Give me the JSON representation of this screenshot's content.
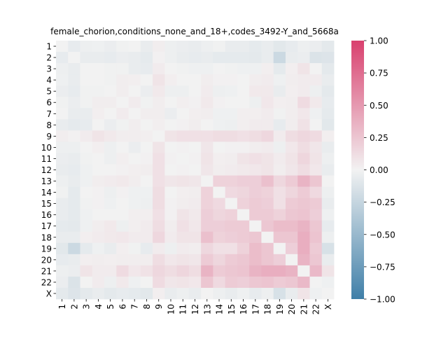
{
  "chart_data": {
    "type": "heatmap",
    "title": "female_chorion,conditions_none_and_18+,codes_3492-Y_and_5668a",
    "xlabel": "",
    "ylabel": "",
    "row_labels": [
      "1",
      "2",
      "3",
      "4",
      "5",
      "6",
      "7",
      "8",
      "9",
      "10",
      "11",
      "12",
      "13",
      "14",
      "15",
      "16",
      "17",
      "18",
      "19",
      "20",
      "21",
      "22",
      "X"
    ],
    "col_labels": [
      "1",
      "2",
      "3",
      "4",
      "5",
      "6",
      "7",
      "8",
      "9",
      "10",
      "11",
      "12",
      "13",
      "14",
      "15",
      "16",
      "17",
      "18",
      "19",
      "20",
      "21",
      "22",
      "X"
    ],
    "values": [
      [
        0.0,
        -0.06,
        -0.03,
        -0.02,
        -0.04,
        -0.01,
        0.0,
        -0.05,
        0.03,
        -0.03,
        -0.04,
        -0.05,
        -0.03,
        -0.01,
        -0.05,
        -0.05,
        -0.07,
        -0.05,
        -0.09,
        -0.06,
        -0.03,
        -0.04,
        -0.08
      ],
      [
        -0.06,
        0.0,
        -0.05,
        -0.05,
        -0.06,
        -0.04,
        -0.05,
        -0.07,
        0.01,
        -0.03,
        -0.05,
        -0.06,
        -0.05,
        -0.07,
        -0.07,
        -0.07,
        -0.08,
        -0.05,
        -0.22,
        -0.05,
        -0.04,
        -0.13,
        -0.12
      ],
      [
        -0.03,
        -0.05,
        0.0,
        0.0,
        -0.01,
        -0.01,
        -0.05,
        -0.06,
        0.04,
        0.0,
        -0.01,
        -0.02,
        -0.02,
        0.0,
        -0.01,
        -0.02,
        -0.02,
        0.02,
        -0.07,
        0.02,
        0.08,
        0.0,
        -0.08
      ],
      [
        -0.02,
        -0.05,
        0.0,
        0.0,
        -0.01,
        0.03,
        0.02,
        0.0,
        0.08,
        0.02,
        0.0,
        0.0,
        0.03,
        0.01,
        0.01,
        0.0,
        0.03,
        0.04,
        -0.02,
        0.03,
        0.04,
        0.04,
        -0.05
      ],
      [
        -0.04,
        -0.06,
        -0.01,
        -0.01,
        0.0,
        0.03,
        0.0,
        -0.04,
        0.05,
        -0.03,
        -0.03,
        0.0,
        0.04,
        -0.03,
        -0.02,
        0.0,
        0.05,
        0.05,
        -0.05,
        0.02,
        0.04,
        -0.03,
        -0.08
      ],
      [
        -0.01,
        -0.04,
        -0.01,
        0.03,
        0.03,
        0.0,
        0.04,
        -0.01,
        0.03,
        0.0,
        0.02,
        0.01,
        0.05,
        0.01,
        0.0,
        0.0,
        -0.03,
        0.06,
        0.02,
        0.03,
        0.13,
        0.05,
        -0.06
      ],
      [
        0.0,
        -0.05,
        -0.05,
        0.02,
        0.0,
        0.04,
        0.0,
        0.03,
        0.03,
        -0.04,
        0.0,
        0.02,
        0.03,
        -0.02,
        -0.02,
        0.02,
        0.02,
        0.04,
        -0.01,
        0.03,
        0.06,
        -0.02,
        -0.07
      ],
      [
        -0.05,
        -0.07,
        -0.06,
        0.0,
        -0.04,
        -0.01,
        0.03,
        0.0,
        0.02,
        0.0,
        0.01,
        0.03,
        0.0,
        -0.02,
        -0.03,
        0.02,
        0.04,
        0.04,
        -0.06,
        0.03,
        0.09,
        0.0,
        -0.09
      ],
      [
        0.03,
        0.01,
        0.04,
        0.08,
        0.05,
        0.03,
        0.03,
        0.02,
        0.0,
        0.08,
        0.1,
        0.1,
        0.1,
        0.12,
        0.12,
        0.1,
        0.12,
        0.15,
        0.04,
        0.12,
        0.15,
        0.13,
        0.02
      ],
      [
        -0.03,
        -0.03,
        0.0,
        0.02,
        -0.03,
        0.0,
        -0.04,
        0.0,
        0.08,
        0.0,
        0.01,
        0.0,
        0.07,
        0.0,
        0.01,
        0.01,
        0.03,
        0.04,
        -0.03,
        0.06,
        0.12,
        0.07,
        -0.05
      ],
      [
        -0.04,
        -0.05,
        -0.01,
        0.0,
        -0.03,
        0.02,
        0.0,
        0.01,
        0.1,
        0.01,
        0.0,
        0.01,
        0.08,
        0.02,
        0.03,
        0.08,
        0.1,
        0.08,
        0.04,
        0.08,
        0.16,
        0.08,
        -0.03
      ],
      [
        -0.05,
        -0.06,
        -0.02,
        0.0,
        0.0,
        0.01,
        0.02,
        0.03,
        0.1,
        0.0,
        0.01,
        0.0,
        0.07,
        0.03,
        0.04,
        0.05,
        0.06,
        0.08,
        0.03,
        0.07,
        0.12,
        0.06,
        -0.05
      ],
      [
        -0.03,
        -0.05,
        -0.02,
        0.03,
        0.04,
        0.05,
        0.03,
        0.0,
        0.1,
        0.07,
        0.08,
        0.07,
        0.0,
        0.18,
        0.18,
        0.2,
        0.2,
        0.28,
        0.15,
        0.22,
        0.35,
        0.25,
        0.0
      ],
      [
        -0.01,
        -0.07,
        0.0,
        0.01,
        -0.03,
        0.01,
        -0.02,
        -0.02,
        0.12,
        0.0,
        0.02,
        0.03,
        0.18,
        0.0,
        0.14,
        0.16,
        0.2,
        0.18,
        0.1,
        0.16,
        0.22,
        0.14,
        -0.03
      ],
      [
        -0.05,
        -0.07,
        -0.01,
        0.01,
        -0.02,
        0.0,
        -0.02,
        -0.03,
        0.12,
        0.01,
        0.03,
        0.04,
        0.18,
        0.14,
        0.0,
        0.18,
        0.22,
        0.2,
        0.1,
        0.22,
        0.24,
        0.22,
        -0.05
      ],
      [
        -0.05,
        -0.07,
        -0.02,
        0.0,
        0.0,
        0.0,
        0.02,
        0.02,
        0.1,
        0.01,
        0.08,
        0.05,
        0.2,
        0.16,
        0.18,
        0.0,
        0.22,
        0.22,
        0.18,
        0.24,
        0.26,
        0.2,
        -0.02
      ],
      [
        -0.07,
        -0.08,
        -0.02,
        0.03,
        0.05,
        -0.03,
        0.02,
        0.04,
        0.12,
        0.03,
        0.1,
        0.06,
        0.2,
        0.2,
        0.22,
        0.22,
        0.0,
        0.24,
        0.3,
        0.3,
        0.35,
        0.24,
        -0.06
      ],
      [
        -0.05,
        -0.05,
        0.02,
        0.04,
        0.05,
        0.06,
        0.04,
        0.04,
        0.15,
        0.04,
        0.08,
        0.08,
        0.28,
        0.18,
        0.2,
        0.22,
        0.24,
        0.0,
        0.25,
        0.25,
        0.38,
        0.26,
        -0.03
      ],
      [
        -0.09,
        -0.22,
        -0.07,
        -0.02,
        -0.05,
        0.02,
        -0.01,
        -0.06,
        0.04,
        -0.03,
        0.04,
        0.03,
        0.15,
        0.1,
        0.1,
        0.18,
        0.3,
        0.25,
        0.0,
        0.2,
        0.38,
        0.22,
        -0.15
      ],
      [
        -0.06,
        -0.05,
        0.02,
        0.03,
        0.02,
        0.03,
        0.03,
        0.03,
        0.12,
        0.06,
        0.08,
        0.07,
        0.22,
        0.16,
        0.22,
        0.24,
        0.3,
        0.25,
        0.2,
        0.0,
        0.35,
        0.24,
        -0.05
      ],
      [
        -0.03,
        -0.04,
        0.08,
        0.04,
        0.04,
        0.13,
        0.06,
        0.09,
        0.15,
        0.12,
        0.16,
        0.12,
        0.35,
        0.22,
        0.24,
        0.26,
        0.35,
        0.38,
        0.38,
        0.35,
        0.0,
        0.32,
        0.08
      ],
      [
        -0.04,
        -0.13,
        0.0,
        0.04,
        -0.03,
        0.05,
        -0.02,
        0.0,
        0.13,
        0.07,
        0.08,
        0.06,
        0.25,
        0.14,
        0.22,
        0.2,
        0.24,
        0.26,
        0.22,
        0.24,
        0.32,
        0.0,
        -0.02
      ],
      [
        -0.08,
        -0.12,
        -0.08,
        -0.05,
        -0.08,
        -0.06,
        -0.07,
        -0.09,
        0.02,
        -0.05,
        -0.03,
        -0.05,
        0.0,
        -0.03,
        -0.05,
        -0.02,
        -0.06,
        -0.03,
        -0.15,
        -0.05,
        0.08,
        -0.02,
        0.0
      ]
    ],
    "vmin": -1.0,
    "vmax": 1.0,
    "colorbar_ticks": [
      "1.00",
      "0.75",
      "0.50",
      "0.25",
      "0.00",
      "−0.25",
      "−0.50",
      "−0.75",
      "−1.00"
    ],
    "colorbar_tick_values": [
      1.0,
      0.75,
      0.5,
      0.25,
      0.0,
      -0.25,
      -0.5,
      -0.75,
      -1.0
    ],
    "colors": {
      "negative": "#3f7fa8",
      "neutral": "#f2f2f2",
      "positive": "#d9406e"
    },
    "grid": false
  }
}
